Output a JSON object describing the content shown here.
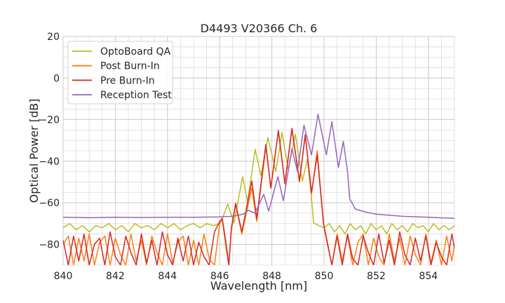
{
  "chart_data": {
    "type": "line",
    "title": "D4493 V20366 Ch. 6",
    "xlabel": "Wavelength [nm]",
    "ylabel": "Optical Power [dB]",
    "xlim": [
      840,
      855
    ],
    "ylim": [
      -90,
      20
    ],
    "xticks": [
      840,
      842,
      844,
      846,
      848,
      850,
      852,
      854
    ],
    "yticks": [
      20,
      0,
      -20,
      -40,
      -60,
      -80
    ],
    "xtick_labels": [
      "840",
      "842",
      "844",
      "846",
      "848",
      "850",
      "852",
      "854"
    ],
    "ytick_labels": [
      "20",
      "0",
      "−20",
      "−40",
      "−60",
      "−80"
    ],
    "grid": true,
    "minor_grid": true,
    "legend_position": "top-left",
    "series": [
      {
        "name": "OptoBoard QA",
        "color": "#bcbd22",
        "points": [
          [
            840,
            -72
          ],
          [
            840.25,
            -70
          ],
          [
            840.5,
            -73
          ],
          [
            840.75,
            -71
          ],
          [
            841,
            -74
          ],
          [
            841.25,
            -71
          ],
          [
            841.5,
            -72
          ],
          [
            841.75,
            -70
          ],
          [
            842,
            -73
          ],
          [
            842.25,
            -71
          ],
          [
            842.5,
            -74
          ],
          [
            842.75,
            -70
          ],
          [
            843,
            -72
          ],
          [
            843.25,
            -71
          ],
          [
            843.5,
            -73
          ],
          [
            843.75,
            -70
          ],
          [
            844,
            -72
          ],
          [
            844.25,
            -70
          ],
          [
            844.5,
            -73
          ],
          [
            844.75,
            -71
          ],
          [
            845,
            -70
          ],
          [
            845.25,
            -72
          ],
          [
            845.5,
            -70
          ],
          [
            845.75,
            -71
          ],
          [
            846,
            -70
          ],
          [
            846.15,
            -66
          ],
          [
            846.31,
            -60.6
          ],
          [
            846.55,
            -69.7
          ],
          [
            846.88,
            -47.5
          ],
          [
            847.07,
            -59.6
          ],
          [
            847.36,
            -34.3
          ],
          [
            847.58,
            -47
          ],
          [
            847.85,
            -28.6
          ],
          [
            848.15,
            -45
          ],
          [
            848.39,
            -26.2
          ],
          [
            848.63,
            -44
          ],
          [
            848.9,
            -27
          ],
          [
            849.17,
            -49.5
          ],
          [
            849.36,
            -39.4
          ],
          [
            849.5,
            -55
          ],
          [
            849.6,
            -69.7
          ],
          [
            849.8,
            -71
          ],
          [
            850,
            -72
          ],
          [
            850.2,
            -70
          ],
          [
            850.4,
            -74
          ],
          [
            850.6,
            -71
          ],
          [
            850.8,
            -75
          ],
          [
            851,
            -70
          ],
          [
            851.2,
            -73
          ],
          [
            851.4,
            -71
          ],
          [
            851.6,
            -75
          ],
          [
            851.8,
            -70
          ],
          [
            852,
            -73
          ],
          [
            852.2,
            -71
          ],
          [
            852.4,
            -75
          ],
          [
            852.6,
            -70
          ],
          [
            852.8,
            -73
          ],
          [
            853,
            -71
          ],
          [
            853.2,
            -74
          ],
          [
            853.4,
            -70
          ],
          [
            853.6,
            -72
          ],
          [
            853.8,
            -71
          ],
          [
            854,
            -74
          ],
          [
            854.2,
            -70
          ],
          [
            854.4,
            -73
          ],
          [
            854.6,
            -71
          ],
          [
            854.8,
            -73
          ],
          [
            855,
            -71
          ]
        ]
      },
      {
        "name": "Post Burn-In",
        "color": "#ff7f0e",
        "points": [
          [
            840,
            -80
          ],
          [
            840.2,
            -76
          ],
          [
            840.4,
            -90
          ],
          [
            840.6,
            -77
          ],
          [
            840.8,
            -88
          ],
          [
            841,
            -75
          ],
          [
            841.2,
            -90
          ],
          [
            841.4,
            -79
          ],
          [
            841.6,
            -76
          ],
          [
            841.8,
            -90
          ],
          [
            842,
            -77
          ],
          [
            842.2,
            -85
          ],
          [
            842.4,
            -90
          ],
          [
            842.6,
            -75
          ],
          [
            842.8,
            -88
          ],
          [
            843,
            -78
          ],
          [
            843.2,
            -90
          ],
          [
            843.4,
            -76
          ],
          [
            843.6,
            -84
          ],
          [
            843.8,
            -90
          ],
          [
            844,
            -75
          ],
          [
            844.2,
            -89
          ],
          [
            844.4,
            -79
          ],
          [
            844.6,
            -76
          ],
          [
            844.8,
            -90
          ],
          [
            845,
            -78
          ],
          [
            845.2,
            -90
          ],
          [
            845.4,
            -75
          ],
          [
            845.6,
            -87
          ],
          [
            845.8,
            -90
          ],
          [
            846,
            -70
          ],
          [
            846.1,
            -68
          ],
          [
            846.25,
            -82
          ],
          [
            846.35,
            -90
          ],
          [
            846.45,
            -73
          ],
          [
            846.61,
            -61
          ],
          [
            846.85,
            -75
          ],
          [
            847.23,
            -53
          ],
          [
            847.42,
            -69
          ],
          [
            847.77,
            -33
          ],
          [
            847.96,
            -53
          ],
          [
            848.25,
            -25.5
          ],
          [
            848.5,
            -51
          ],
          [
            848.77,
            -24.5
          ],
          [
            849.06,
            -50
          ],
          [
            849.28,
            -27.5
          ],
          [
            849.52,
            -56
          ],
          [
            849.74,
            -35
          ],
          [
            849.98,
            -70
          ],
          [
            850.1,
            -77
          ],
          [
            850.3,
            -90
          ],
          [
            850.5,
            -75
          ],
          [
            850.7,
            -88
          ],
          [
            850.9,
            -76
          ],
          [
            851.1,
            -90
          ],
          [
            851.3,
            -79
          ],
          [
            851.5,
            -75
          ],
          [
            851.7,
            -90
          ],
          [
            851.9,
            -77
          ],
          [
            852.1,
            -86
          ],
          [
            852.3,
            -90
          ],
          [
            852.5,
            -75
          ],
          [
            852.7,
            -88
          ],
          [
            852.9,
            -77
          ],
          [
            853.1,
            -90
          ],
          [
            853.3,
            -76
          ],
          [
            853.5,
            -85
          ],
          [
            853.7,
            -90
          ],
          [
            853.9,
            -75
          ],
          [
            854.1,
            -89
          ],
          [
            854.3,
            -78
          ],
          [
            854.5,
            -90
          ],
          [
            854.7,
            -76
          ],
          [
            854.9,
            -88
          ],
          [
            855,
            -80
          ]
        ]
      },
      {
        "name": "Pre Burn-In",
        "color": "#d62728",
        "points": [
          [
            840,
            -78
          ],
          [
            840.2,
            -90
          ],
          [
            840.4,
            -76
          ],
          [
            840.6,
            -88
          ],
          [
            840.8,
            -75
          ],
          [
            841,
            -90
          ],
          [
            841.2,
            -80
          ],
          [
            841.4,
            -77
          ],
          [
            841.6,
            -90
          ],
          [
            841.8,
            -74
          ],
          [
            842,
            -86
          ],
          [
            842.2,
            -90
          ],
          [
            842.4,
            -76
          ],
          [
            842.6,
            -84
          ],
          [
            842.8,
            -90
          ],
          [
            843,
            -75
          ],
          [
            843.2,
            -89
          ],
          [
            843.4,
            -78
          ],
          [
            843.6,
            -90
          ],
          [
            843.8,
            -74
          ],
          [
            844,
            -85
          ],
          [
            844.2,
            -90
          ],
          [
            844.4,
            -77
          ],
          [
            844.6,
            -88
          ],
          [
            844.8,
            -76
          ],
          [
            845,
            -90
          ],
          [
            845.2,
            -79
          ],
          [
            845.4,
            -86
          ],
          [
            845.6,
            -90
          ],
          [
            845.8,
            -74
          ],
          [
            846,
            -69
          ],
          [
            846.1,
            -67.5
          ],
          [
            846.25,
            -80
          ],
          [
            846.35,
            -90
          ],
          [
            846.45,
            -72
          ],
          [
            846.61,
            -60.3
          ],
          [
            846.85,
            -74
          ],
          [
            847.23,
            -49.5
          ],
          [
            847.42,
            -67.7
          ],
          [
            847.77,
            -32
          ],
          [
            847.96,
            -52.8
          ],
          [
            848.25,
            -25.2
          ],
          [
            848.5,
            -50.8
          ],
          [
            848.77,
            -24.2
          ],
          [
            849.06,
            -49.5
          ],
          [
            849.28,
            -27.2
          ],
          [
            849.52,
            -55
          ],
          [
            849.74,
            -37
          ],
          [
            849.98,
            -70.4
          ],
          [
            850.1,
            -78
          ],
          [
            850.3,
            -90
          ],
          [
            850.5,
            -76
          ],
          [
            850.7,
            -90
          ],
          [
            850.9,
            -75
          ],
          [
            851.1,
            -87
          ],
          [
            851.3,
            -90
          ],
          [
            851.5,
            -76
          ],
          [
            851.7,
            -84
          ],
          [
            851.9,
            -90
          ],
          [
            852.1,
            -75
          ],
          [
            852.3,
            -89
          ],
          [
            852.5,
            -78
          ],
          [
            852.7,
            -90
          ],
          [
            852.9,
            -74
          ],
          [
            853.1,
            -85
          ],
          [
            853.3,
            -90
          ],
          [
            853.5,
            -77
          ],
          [
            853.7,
            -88
          ],
          [
            853.9,
            -76
          ],
          [
            854.1,
            -90
          ],
          [
            854.3,
            -79
          ],
          [
            854.5,
            -86
          ],
          [
            854.7,
            -90
          ],
          [
            854.9,
            -75
          ],
          [
            855,
            -82
          ]
        ]
      },
      {
        "name": "Reception Test",
        "color": "#9467bd",
        "points": [
          [
            840,
            -67
          ],
          [
            841,
            -67.2
          ],
          [
            842,
            -67
          ],
          [
            843,
            -67.1
          ],
          [
            844,
            -67
          ],
          [
            845,
            -67
          ],
          [
            846,
            -66.8
          ],
          [
            846.5,
            -66.5
          ],
          [
            846.9,
            -65.5
          ],
          [
            847.1,
            -63.6
          ],
          [
            847.35,
            -65
          ],
          [
            847.69,
            -56
          ],
          [
            847.88,
            -64
          ],
          [
            848.23,
            -47.5
          ],
          [
            848.44,
            -59
          ],
          [
            848.77,
            -34
          ],
          [
            848.98,
            -45
          ],
          [
            849.23,
            -22.7
          ],
          [
            849.52,
            -37
          ],
          [
            849.77,
            -17.4
          ],
          [
            850.09,
            -37
          ],
          [
            850.3,
            -21
          ],
          [
            850.55,
            -43
          ],
          [
            850.74,
            -30.5
          ],
          [
            850.9,
            -45
          ],
          [
            850.98,
            -58
          ],
          [
            851.2,
            -63
          ],
          [
            851.6,
            -64.5
          ],
          [
            852,
            -65.5
          ],
          [
            853,
            -66.5
          ],
          [
            854,
            -67
          ],
          [
            855,
            -67.5
          ]
        ]
      }
    ]
  }
}
